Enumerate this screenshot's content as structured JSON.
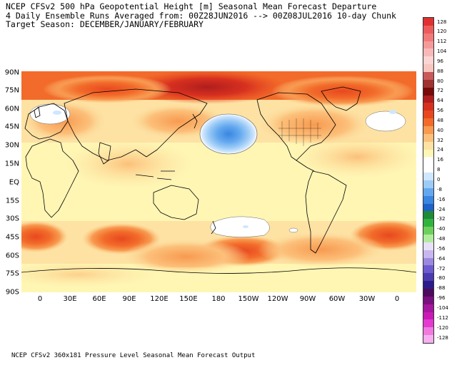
{
  "header": {
    "line1": "NCEP CFSv2 500 hPa Geopotential Height [m] Seasonal Mean Forecast Departure",
    "line2": "4 Daily Ensemble Runs Averaged from: 00Z28JUN2016 --> 00Z08JUL2016 10-day Chunk",
    "line3": "Target Season: DECEMBER/JANUARY/FEBRUARY"
  },
  "footer": "NCEP CFSv2 360x181 Pressure Level Seasonal Mean Forecast Output",
  "map": {
    "lat_labels": [
      "90N",
      "75N",
      "60N",
      "45N",
      "30N",
      "15N",
      "EQ",
      "15S",
      "30S",
      "45S",
      "60S",
      "75S",
      "90S"
    ],
    "lon_labels": [
      "0",
      "30E",
      "60E",
      "90E",
      "120E",
      "150E",
      "180",
      "150W",
      "120W",
      "90W",
      "60W",
      "30W",
      "0"
    ],
    "ocean_color": "#fff6b4",
    "land_outline_color": "#000000"
  },
  "colorbar": {
    "labels": [
      "128",
      "120",
      "112",
      "104",
      "96",
      "88",
      "80",
      "72",
      "64",
      "56",
      "48",
      "40",
      "32",
      "24",
      "16",
      "8",
      "0",
      "-8",
      "-16",
      "-24",
      "-32",
      "-40",
      "-48",
      "-56",
      "-64",
      "-72",
      "-80",
      "-88",
      "-96",
      "-104",
      "-112",
      "-120",
      "-128"
    ],
    "colors": [
      "#e03131",
      "#ed5c5c",
      "#f27a7a",
      "#f59a9a",
      "#f9b8b8",
      "#fcd4d4",
      "#f7c6c0",
      "#c85a5a",
      "#a03232",
      "#780a0a",
      "#b01e1e",
      "#d7301f",
      "#e8481f",
      "#f26b2a",
      "#f89a50",
      "#fcc07a",
      "#fde2a3",
      "#fff6b4",
      "#ffffff",
      "#ffffff",
      "#cfe6ff",
      "#9ccbf6",
      "#63a8ef",
      "#3a86e0",
      "#1f62c8",
      "#1e8a3a",
      "#2fb33f",
      "#6cd05c",
      "#b0ec9e",
      "#e8e0f8",
      "#c7b6ef",
      "#9c89df",
      "#6e5ccf",
      "#4a3bb0",
      "#2d1b8a",
      "#4c0b5c",
      "#7a0f80",
      "#a6169e",
      "#c91ab8",
      "#e33bd0",
      "#f07adf",
      "#f8aef0"
    ]
  }
}
